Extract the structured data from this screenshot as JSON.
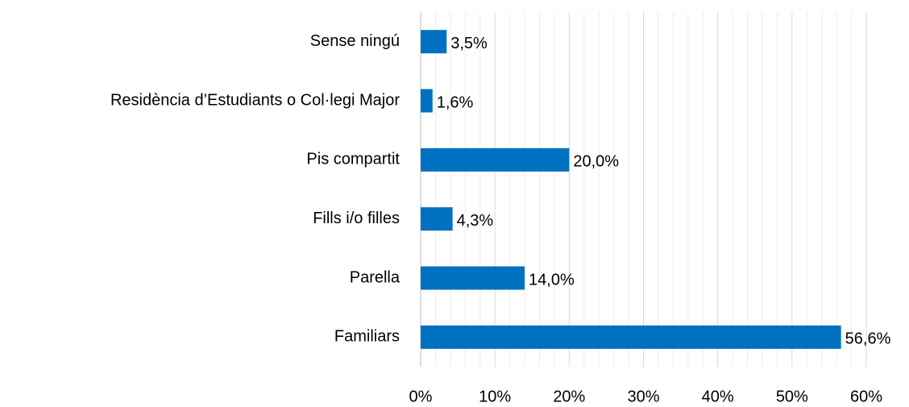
{
  "chart_data": {
    "type": "barh",
    "categories": [
      "Sense ningú",
      "Residència d’Estudiants o Col·legi Major",
      "Pis compartit",
      "Fills i/o filles",
      "Parella",
      "Familiars"
    ],
    "values": [
      3.5,
      1.6,
      20.0,
      4.3,
      14.0,
      56.6
    ],
    "value_labels": [
      "3,5%",
      "1,6%",
      "20,0%",
      "4,3%",
      "14,0%",
      "56,6%"
    ],
    "color": "#0070c0",
    "xlim": [
      0,
      60
    ],
    "xticks": [
      {
        "value": 0,
        "label": "0%"
      },
      {
        "value": 10,
        "label": "10%"
      },
      {
        "value": 20,
        "label": "20%"
      },
      {
        "value": 30,
        "label": "30%"
      },
      {
        "value": 40,
        "label": "40%"
      },
      {
        "value": 50,
        "label": "50%"
      },
      {
        "value": 60,
        "label": "60%"
      }
    ],
    "xminorticks": [
      2,
      4,
      6,
      8,
      12,
      14,
      16,
      18,
      22,
      24,
      26,
      28,
      32,
      34,
      36,
      38,
      42,
      44,
      46,
      48,
      52,
      54,
      56,
      58
    ],
    "grid": true
  }
}
